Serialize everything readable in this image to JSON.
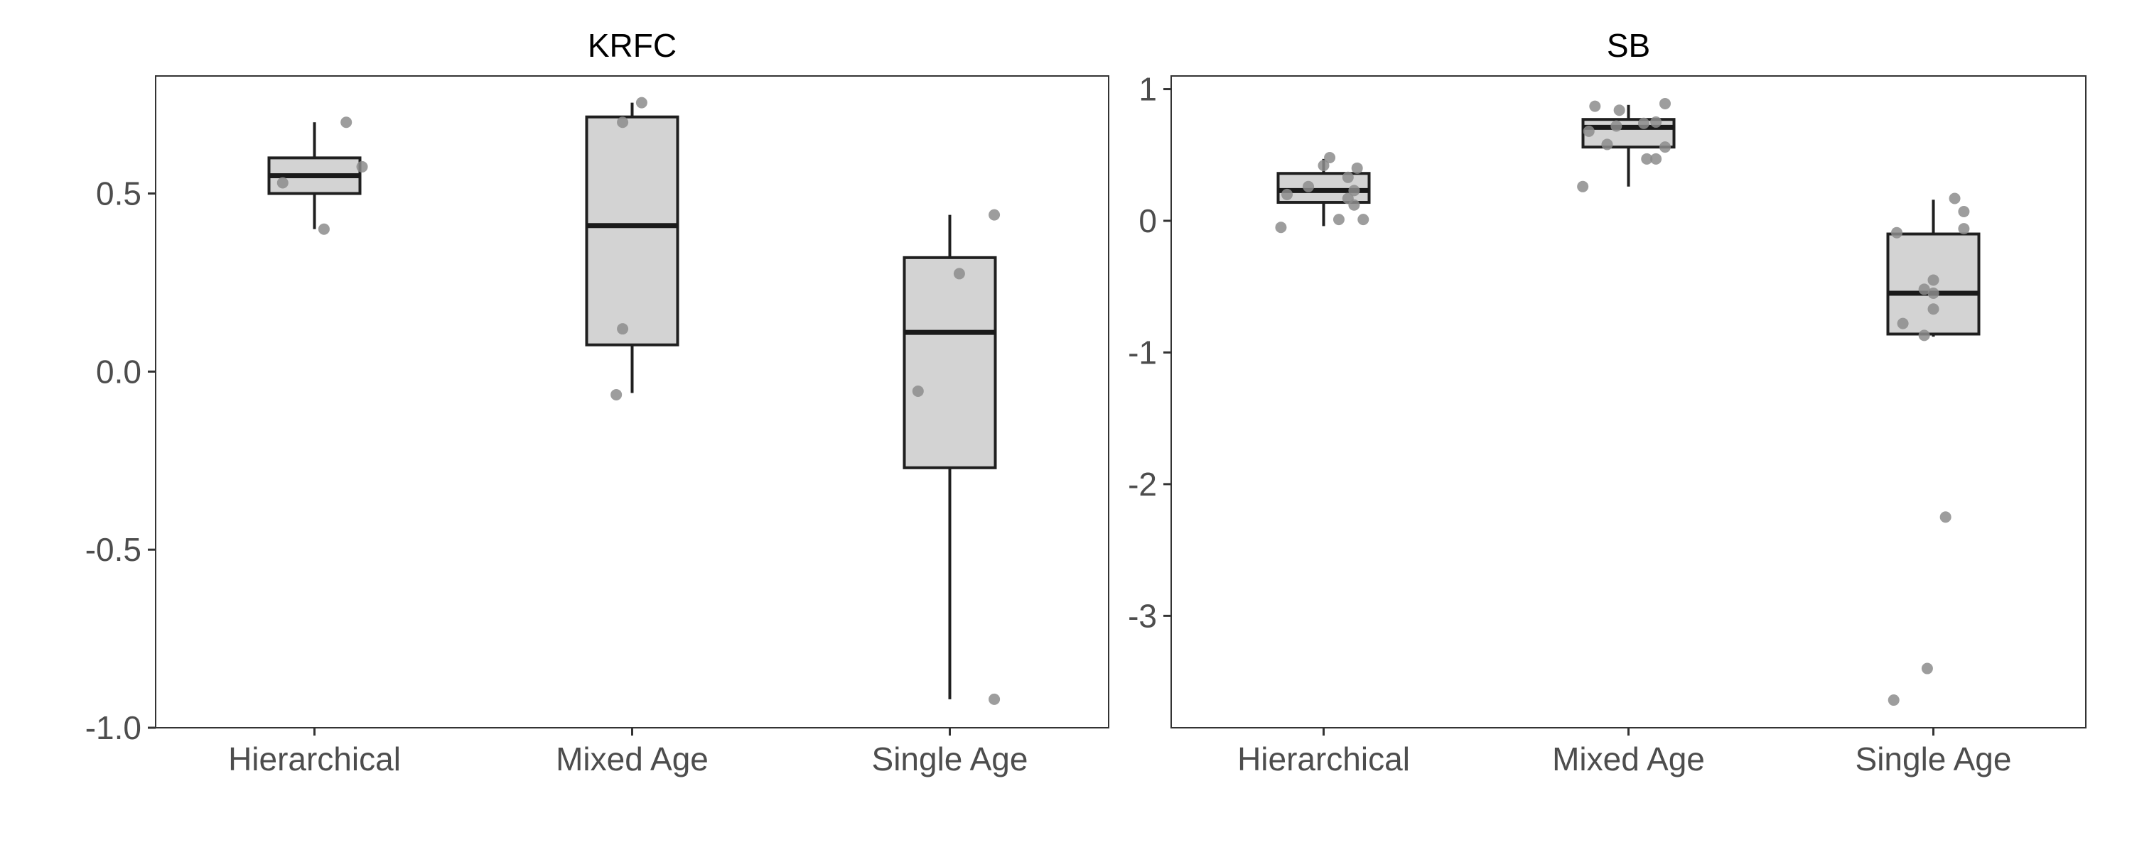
{
  "chart_data": [
    {
      "type": "box",
      "title": "KRFC",
      "xlabel": "",
      "ylabel": "",
      "categories": [
        "Hierarchical",
        "Mixed Age",
        "Single Age"
      ],
      "ylim": [
        -1.0,
        0.83
      ],
      "yticks": [
        -1.0,
        -0.5,
        0.0,
        0.5
      ],
      "ytick_labels": [
        "-1.0",
        "-0.5",
        "0.0",
        "0.5"
      ],
      "grid": false,
      "boxes": [
        {
          "category": "Hierarchical",
          "min": 0.4,
          "q1": 0.5,
          "median": 0.55,
          "q3": 0.6,
          "max": 0.7
        },
        {
          "category": "Mixed Age",
          "min": -0.06,
          "q1": 0.075,
          "median": 0.41,
          "q3": 0.715,
          "max": 0.755
        },
        {
          "category": "Single Age",
          "min": -0.92,
          "q1": -0.27,
          "median": 0.11,
          "q3": 0.32,
          "max": 0.44
        }
      ],
      "points": [
        {
          "category": "Hierarchical",
          "jitter": -0.1,
          "y": 0.53
        },
        {
          "category": "Hierarchical",
          "jitter": 0.1,
          "y": 0.7
        },
        {
          "category": "Hierarchical",
          "jitter": 0.15,
          "y": 0.575
        },
        {
          "category": "Hierarchical",
          "jitter": 0.03,
          "y": 0.4
        },
        {
          "category": "Mixed Age",
          "jitter": -0.03,
          "y": 0.7
        },
        {
          "category": "Mixed Age",
          "jitter": 0.03,
          "y": 0.755
        },
        {
          "category": "Mixed Age",
          "jitter": -0.03,
          "y": 0.12
        },
        {
          "category": "Mixed Age",
          "jitter": -0.05,
          "y": -0.065
        },
        {
          "category": "Single Age",
          "jitter": 0.14,
          "y": 0.44
        },
        {
          "category": "Single Age",
          "jitter": 0.03,
          "y": 0.275
        },
        {
          "category": "Single Age",
          "jitter": -0.1,
          "y": -0.055
        },
        {
          "category": "Single Age",
          "jitter": 0.14,
          "y": -0.92
        }
      ]
    },
    {
      "type": "box",
      "title": "SB",
      "xlabel": "",
      "ylabel": "",
      "categories": [
        "Hierarchical",
        "Mixed Age",
        "Single Age"
      ],
      "ylim": [
        -3.85,
        1.1
      ],
      "yticks": [
        -3,
        -2,
        -1,
        0,
        1
      ],
      "ytick_labels": [
        "-3",
        "-2",
        "-1",
        "0",
        "1"
      ],
      "grid": false,
      "boxes": [
        {
          "category": "Hierarchical",
          "min": -0.04,
          "q1": 0.14,
          "median": 0.23,
          "q3": 0.36,
          "max": 0.47
        },
        {
          "category": "Mixed Age",
          "min": 0.26,
          "q1": 0.56,
          "median": 0.71,
          "q3": 0.77,
          "max": 0.88
        },
        {
          "category": "Single Age",
          "min": -0.88,
          "q1": -0.86,
          "median": -0.55,
          "q3": -0.1,
          "max": 0.16
        }
      ],
      "points": [
        {
          "category": "Hierarchical",
          "jitter": -0.12,
          "y": 0.2
        },
        {
          "category": "Hierarchical",
          "jitter": -0.05,
          "y": 0.26
        },
        {
          "category": "Hierarchical",
          "jitter": 0.02,
          "y": 0.48
        },
        {
          "category": "Hierarchical",
          "jitter": 0.0,
          "y": 0.42
        },
        {
          "category": "Hierarchical",
          "jitter": 0.08,
          "y": 0.33
        },
        {
          "category": "Hierarchical",
          "jitter": 0.11,
          "y": 0.4
        },
        {
          "category": "Hierarchical",
          "jitter": 0.1,
          "y": 0.23
        },
        {
          "category": "Hierarchical",
          "jitter": 0.08,
          "y": 0.17
        },
        {
          "category": "Hierarchical",
          "jitter": 0.1,
          "y": 0.12
        },
        {
          "category": "Hierarchical",
          "jitter": -0.14,
          "y": -0.05
        },
        {
          "category": "Hierarchical",
          "jitter": 0.05,
          "y": 0.01
        },
        {
          "category": "Hierarchical",
          "jitter": 0.13,
          "y": 0.01
        },
        {
          "category": "Mixed Age",
          "jitter": -0.11,
          "y": 0.87
        },
        {
          "category": "Mixed Age",
          "jitter": -0.03,
          "y": 0.84
        },
        {
          "category": "Mixed Age",
          "jitter": 0.12,
          "y": 0.89
        },
        {
          "category": "Mixed Age",
          "jitter": -0.13,
          "y": 0.68
        },
        {
          "category": "Mixed Age",
          "jitter": -0.04,
          "y": 0.72
        },
        {
          "category": "Mixed Age",
          "jitter": 0.05,
          "y": 0.74
        },
        {
          "category": "Mixed Age",
          "jitter": 0.09,
          "y": 0.75
        },
        {
          "category": "Mixed Age",
          "jitter": -0.07,
          "y": 0.58
        },
        {
          "category": "Mixed Age",
          "jitter": 0.12,
          "y": 0.56
        },
        {
          "category": "Mixed Age",
          "jitter": 0.06,
          "y": 0.47
        },
        {
          "category": "Mixed Age",
          "jitter": 0.09,
          "y": 0.47
        },
        {
          "category": "Mixed Age",
          "jitter": -0.15,
          "y": 0.26
        },
        {
          "category": "Single Age",
          "jitter": 0.07,
          "y": 0.17
        },
        {
          "category": "Single Age",
          "jitter": -0.12,
          "y": -0.09
        },
        {
          "category": "Single Age",
          "jitter": 0.1,
          "y": 0.07
        },
        {
          "category": "Single Age",
          "jitter": 0.1,
          "y": -0.06
        },
        {
          "category": "Single Age",
          "jitter": 0.0,
          "y": -0.45
        },
        {
          "category": "Single Age",
          "jitter": -0.03,
          "y": -0.52
        },
        {
          "category": "Single Age",
          "jitter": 0.0,
          "y": -0.55
        },
        {
          "category": "Single Age",
          "jitter": -0.1,
          "y": -0.78
        },
        {
          "category": "Single Age",
          "jitter": 0.0,
          "y": -0.67
        },
        {
          "category": "Single Age",
          "jitter": -0.03,
          "y": -0.87
        },
        {
          "category": "Single Age",
          "jitter": 0.04,
          "y": -2.25
        },
        {
          "category": "Single Age",
          "jitter": -0.02,
          "y": -3.4
        },
        {
          "category": "Single Age",
          "jitter": -0.13,
          "y": -3.64
        }
      ]
    }
  ],
  "colors": {
    "box_fill": "#d3d3d3",
    "box_stroke": "#1f1f1f",
    "median_line": "#1a1a1a",
    "point_fill": "#8c8c8c",
    "frame": "#333333",
    "tick_label": "#4d4d4d",
    "title": "#000000"
  }
}
